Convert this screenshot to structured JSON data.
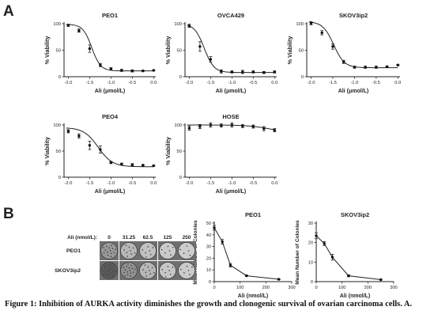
{
  "panel_a_label": "A",
  "panel_b_label": "B",
  "caption": "Figure 1: Inhibition of AURKA activity diminishes the growth and clonogenic survival of ovarian carcinoma cells. A.",
  "chart_data": [
    {
      "type": "scatter",
      "title": "PEO1",
      "xlabel": "Ali (μmol/L)",
      "ylabel": "% Viability",
      "xlim": [
        -2.1,
        0.05
      ],
      "ylim": [
        0,
        100
      ],
      "xticks": [
        "-2.0",
        "-1.5",
        "-1.0",
        "-0.5",
        "0.0"
      ],
      "yticks": [
        "0",
        "50",
        "100"
      ],
      "points": [
        {
          "x": -2.0,
          "y": 97,
          "err": 2
        },
        {
          "x": -1.75,
          "y": 87,
          "err": 3
        },
        {
          "x": -1.5,
          "y": 53,
          "err": 7
        },
        {
          "x": -1.25,
          "y": 22,
          "err": 3
        },
        {
          "x": -1.0,
          "y": 15,
          "err": 2
        },
        {
          "x": -0.75,
          "y": 12,
          "err": 2
        },
        {
          "x": -0.5,
          "y": 11,
          "err": 2
        },
        {
          "x": -0.25,
          "y": 11,
          "err": 1
        },
        {
          "x": 0.0,
          "y": 12,
          "err": 1
        }
      ],
      "fit": {
        "top": 99,
        "bottom": 11,
        "ec50": -1.45,
        "slope": 4.2
      }
    },
    {
      "type": "scatter",
      "title": "OVCA429",
      "xlabel": "Ali (μmol/L)",
      "ylabel": "% Viability",
      "xlim": [
        -2.1,
        0.05
      ],
      "ylim": [
        0,
        100
      ],
      "xticks": [
        "-2.0",
        "-1.5",
        "-1.0",
        "-0.5",
        "0.0"
      ],
      "yticks": [
        "0",
        "50",
        "100"
      ],
      "points": [
        {
          "x": -2.0,
          "y": 96,
          "err": 3
        },
        {
          "x": -1.75,
          "y": 57,
          "err": 9
        },
        {
          "x": -1.5,
          "y": 33,
          "err": 5
        },
        {
          "x": -1.25,
          "y": 10,
          "err": 3
        },
        {
          "x": -1.0,
          "y": 9,
          "err": 2
        },
        {
          "x": -0.75,
          "y": 9,
          "err": 3
        },
        {
          "x": -0.5,
          "y": 9,
          "err": 2
        },
        {
          "x": -0.25,
          "y": 8,
          "err": 2
        },
        {
          "x": 0.0,
          "y": 9,
          "err": 2
        }
      ],
      "fit": {
        "top": 100,
        "bottom": 8,
        "ec50": -1.65,
        "slope": 3.8
      }
    },
    {
      "type": "scatter",
      "title": "SKOV3ip2",
      "xlabel": "Ali (μmol/L)",
      "ylabel": "% Viability",
      "xlim": [
        -2.1,
        0.05
      ],
      "ylim": [
        0,
        100
      ],
      "xticks": [
        "-2.0",
        "-1.5",
        "-1.0",
        "-0.5",
        "0.0"
      ],
      "yticks": [
        "0",
        "50",
        "100"
      ],
      "points": [
        {
          "x": -2.0,
          "y": 101,
          "err": 3
        },
        {
          "x": -1.75,
          "y": 83,
          "err": 4
        },
        {
          "x": -1.5,
          "y": 57,
          "err": 5
        },
        {
          "x": -1.25,
          "y": 28,
          "err": 3
        },
        {
          "x": -1.0,
          "y": 18,
          "err": 2
        },
        {
          "x": -0.75,
          "y": 18,
          "err": 2
        },
        {
          "x": -0.5,
          "y": 18,
          "err": 2
        },
        {
          "x": -0.25,
          "y": 19,
          "err": 1
        },
        {
          "x": 0.0,
          "y": 22,
          "err": 1
        }
      ],
      "fit": {
        "top": 104,
        "bottom": 17,
        "ec50": -1.48,
        "slope": 3.5
      }
    },
    {
      "type": "scatter",
      "title": "PEO4",
      "xlabel": "Ali (μmol/L)",
      "ylabel": "% Viability",
      "xlim": [
        -2.1,
        0.05
      ],
      "ylim": [
        0,
        100
      ],
      "xticks": [
        "-2.0",
        "-1.5",
        "-1.0",
        "-0.5",
        "0.0"
      ],
      "yticks": [
        "0",
        "50",
        "100"
      ],
      "points": [
        {
          "x": -2.0,
          "y": 88,
          "err": 3
        },
        {
          "x": -1.75,
          "y": 79,
          "err": 4
        },
        {
          "x": -1.5,
          "y": 61,
          "err": 8
        },
        {
          "x": -1.25,
          "y": 53,
          "err": 7
        },
        {
          "x": -1.0,
          "y": 28,
          "err": 2
        },
        {
          "x": -0.75,
          "y": 25,
          "err": 2
        },
        {
          "x": -0.5,
          "y": 24,
          "err": 2
        },
        {
          "x": -0.25,
          "y": 23,
          "err": 1
        },
        {
          "x": 0.0,
          "y": 22,
          "err": 1
        }
      ],
      "fit": {
        "top": 95,
        "bottom": 20,
        "ec50": -1.3,
        "slope": 2.6
      }
    },
    {
      "type": "scatter",
      "title": "HOSE",
      "xlabel": "Ali (μmol/L)",
      "ylabel": "% Viability",
      "xlim": [
        -2.1,
        0.05
      ],
      "ylim": [
        0,
        100
      ],
      "xticks": [
        "-2.0",
        "-1.5",
        "-1.0",
        "-0.5",
        "0.0"
      ],
      "yticks": [
        "0",
        "50",
        "100"
      ],
      "points": [
        {
          "x": -2.0,
          "y": 94,
          "err": 4
        },
        {
          "x": -1.75,
          "y": 97,
          "err": 4
        },
        {
          "x": -1.5,
          "y": 100,
          "err": 4
        },
        {
          "x": -1.25,
          "y": 99,
          "err": 3
        },
        {
          "x": -1.0,
          "y": 100,
          "err": 4
        },
        {
          "x": -0.75,
          "y": 98,
          "err": 3
        },
        {
          "x": -0.5,
          "y": 97,
          "err": 3
        },
        {
          "x": -0.25,
          "y": 93,
          "err": 4
        },
        {
          "x": 0.0,
          "y": 90,
          "err": 3
        }
      ],
      "fit": {
        "top": 100,
        "bottom": 83,
        "ec50": -0.05,
        "slope": 1.6
      }
    },
    {
      "type": "line",
      "title": "PEO1",
      "xlabel": "Ali (nmol/L)",
      "ylabel": "Mean Number of Colonies",
      "xlim": [
        0,
        300
      ],
      "ylim": [
        0,
        50
      ],
      "xticks": [
        "0",
        "100",
        "200",
        "300"
      ],
      "yticks": [
        "0",
        "10",
        "20",
        "30",
        "40",
        "50"
      ],
      "points": [
        {
          "x": 0,
          "y": 46,
          "err": 2
        },
        {
          "x": 31.25,
          "y": 34,
          "err": 2
        },
        {
          "x": 62.5,
          "y": 14,
          "err": 1.5
        },
        {
          "x": 125,
          "y": 5,
          "err": 0.5
        },
        {
          "x": 250,
          "y": 2,
          "err": 0.3
        }
      ]
    },
    {
      "type": "line",
      "title": "SKOV3ip2",
      "xlabel": "Ali (nmol/L)",
      "ylabel": "Mean Number of Colonies",
      "xlim": [
        0,
        300
      ],
      "ylim": [
        0,
        30
      ],
      "xticks": [
        "0",
        "100",
        "200",
        "300"
      ],
      "yticks": [
        "0",
        "10",
        "20",
        "30"
      ],
      "points": [
        {
          "x": 0,
          "y": 23.5,
          "err": 1.5
        },
        {
          "x": 31.25,
          "y": 19.5,
          "err": 1
        },
        {
          "x": 62.5,
          "y": 12.5,
          "err": 1.5
        },
        {
          "x": 125,
          "y": 3,
          "err": 0.5
        },
        {
          "x": 250,
          "y": 1,
          "err": 0.2
        }
      ]
    }
  ],
  "colony_assay": {
    "header_label": "Ali (nmol/L):",
    "concentrations": [
      "0",
      "31.25",
      "62.5",
      "125",
      "250"
    ],
    "rows": [
      {
        "label": "PEO1",
        "densities": [
          0.55,
          0.35,
          0.28,
          0.22,
          0.2
        ]
      },
      {
        "label": "SKOV3ip2",
        "densities": [
          0.95,
          0.6,
          0.35,
          0.25,
          0.22
        ]
      }
    ]
  }
}
